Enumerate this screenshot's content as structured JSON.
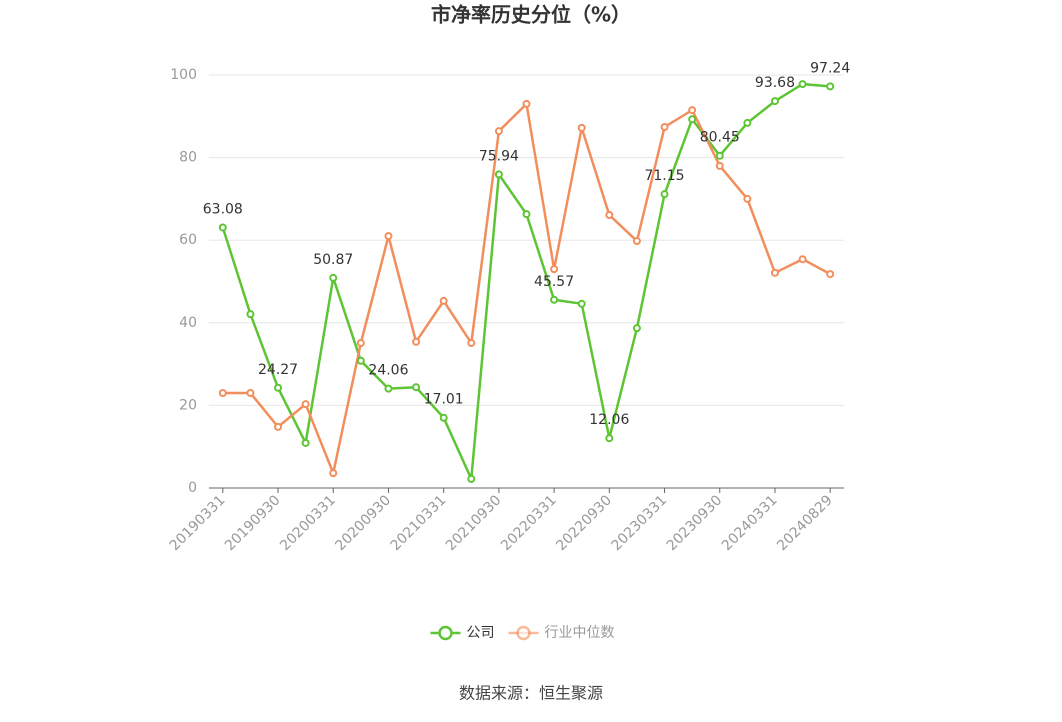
{
  "chart_data": {
    "type": "line",
    "title": "市净率历史分位（%）",
    "categories": [
      "20190331",
      null,
      "20190930",
      null,
      "20200331",
      null,
      "20200930",
      null,
      "20210331",
      null,
      "20210930",
      null,
      "20220331",
      null,
      "20220930",
      null,
      "20230331",
      null,
      "20230930",
      null,
      "20240331",
      null,
      "20240829"
    ],
    "series": [
      {
        "name": "公司",
        "color": "#5dc534",
        "values": [
          63.08,
          42.1,
          24.27,
          10.9,
          50.87,
          30.8,
          24.06,
          24.4,
          17.01,
          2.2,
          75.94,
          66.3,
          45.57,
          44.6,
          12.06,
          38.7,
          71.15,
          89.3,
          80.45,
          88.4,
          93.68,
          97.8,
          97.24
        ],
        "value_labels": [
          "63.08",
          null,
          "24.27",
          null,
          "50.87",
          null,
          "24.06",
          null,
          "17.01",
          null,
          "75.94",
          null,
          "45.57",
          null,
          "12.06",
          null,
          "71.15",
          null,
          "80.45",
          null,
          "93.68",
          null,
          "97.24"
        ]
      },
      {
        "name": "行业中位数",
        "color": "#f28e5c",
        "values": [
          23.0,
          23.0,
          14.8,
          20.3,
          3.6,
          35.1,
          61.0,
          35.4,
          45.3,
          35.1,
          86.4,
          93.0,
          53.0,
          87.2,
          66.1,
          59.8,
          87.4,
          91.5,
          78.0,
          70.0,
          52.1,
          55.4,
          51.8
        ]
      }
    ],
    "ylim": [
      0,
      100
    ],
    "yticks": [
      0,
      20,
      40,
      60,
      80,
      100
    ],
    "grid": true,
    "source": "数据来源：恒生聚源"
  }
}
